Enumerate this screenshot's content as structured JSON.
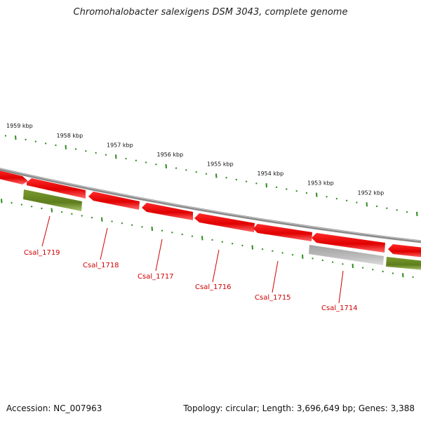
{
  "title": "Chromohalobacter salexigens DSM 3043, complete genome",
  "footer": {
    "accession": "Accession: NC_007963",
    "summary": "Topology: circular; Length: 3,696,649 bp; Genes: 3,388"
  },
  "colors": {
    "backbone": "#8a8a8a",
    "tick": "#2e8b1e",
    "forward_gene": "#e00000",
    "rna_gene": "#6b8e23",
    "pseudo_gene": "#b8b8b8",
    "locus_label": "#d00000"
  },
  "top_ruler": [
    {
      "label": "1959 kbp"
    },
    {
      "label": "1958 kbp"
    },
    {
      "label": "1957 kbp"
    },
    {
      "label": "1956 kbp"
    },
    {
      "label": "1955 kbp"
    },
    {
      "label": "1954 kbp"
    },
    {
      "label": "1953 kbp"
    },
    {
      "label": "1952 kbp"
    }
  ],
  "loci": [
    {
      "label": "Csal_1719"
    },
    {
      "label": "Csal_1718"
    },
    {
      "label": "Csal_1717"
    },
    {
      "label": "Csal_1716"
    },
    {
      "label": "Csal_1715"
    },
    {
      "label": "Csal_1714"
    }
  ]
}
